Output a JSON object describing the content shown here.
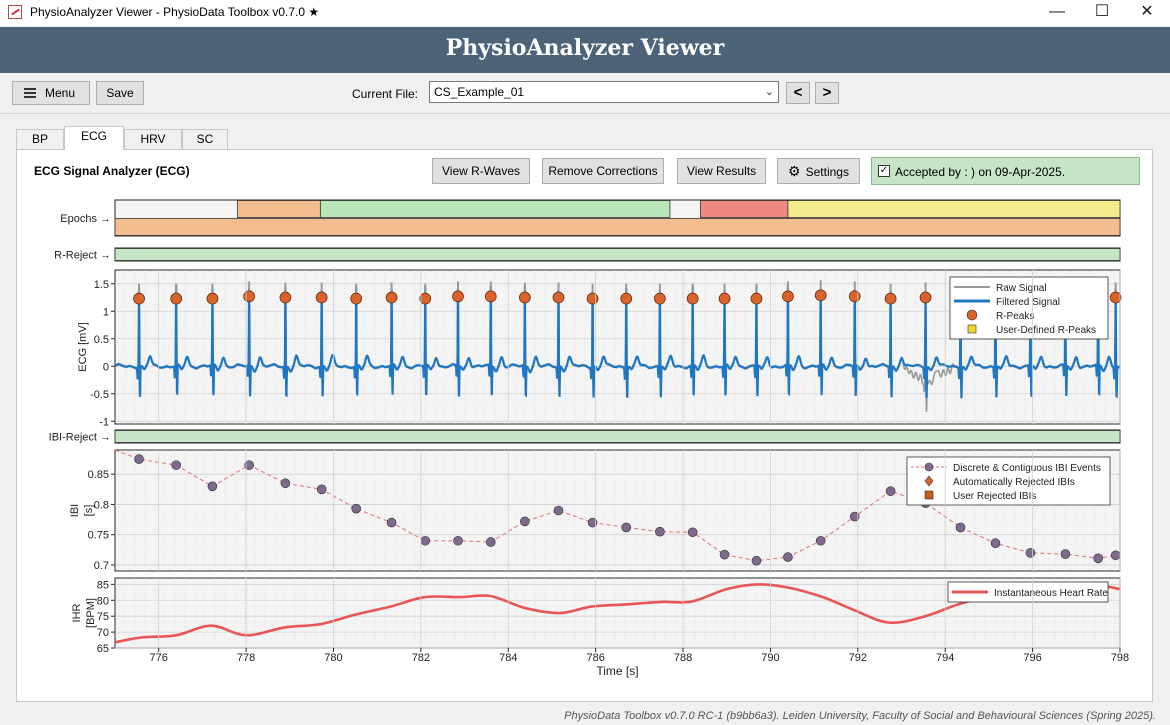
{
  "window": {
    "title": "PhysioAnalyzer Viewer - PhysioData Toolbox v0.7.0 ★"
  },
  "header": {
    "title": "PhysioAnalyzer Viewer"
  },
  "toolbar": {
    "menu_label": "Menu",
    "save_label": "Save",
    "current_file_label": "Current File:",
    "current_file": "CS_Example_01",
    "prev_label": "<",
    "next_label": ">"
  },
  "tabs": [
    {
      "label": "BP"
    },
    {
      "label": "ECG"
    },
    {
      "label": "HRV"
    },
    {
      "label": "SC"
    }
  ],
  "panel": {
    "title": "ECG Signal Analyzer (ECG)",
    "view_rwaves": "View R-Waves",
    "remove_corrections": "Remove Corrections",
    "view_results": "View Results",
    "settings": "Settings",
    "accepted": "Accepted by : ) on 09-Apr-2025."
  },
  "footer": "PhysioData Toolbox v0.7.0 RC-1 (b9bb6a3). Leiden University, Faculty of Social and Behavioural Sciences (Spring 2025).",
  "colors": {
    "raw_signal": "#999999",
    "filtered_signal": "#1f77c4",
    "r_peak": "#d9632b",
    "ibi_point": "#7e6a8e",
    "ibi_line": "#e07070",
    "ihr": "#e85555",
    "accepted_bg": "#c6e4c6",
    "reject_bar": "#c6e4c6",
    "epoch_orange": "#f2bd8f",
    "epoch_green": "#b9e6b9",
    "epoch_red": "#ee8a80",
    "epoch_yellow": "#f4ea8e"
  },
  "chart_data": [
    {
      "type": "timeline",
      "name": "epochs",
      "label": "Epochs →",
      "rows": [
        [
          {
            "start": 777.8,
            "end": 779.7,
            "color": "#f2bd8f"
          },
          {
            "start": 779.7,
            "end": 787.7,
            "color": "#b9e6b9"
          },
          {
            "start": 788.4,
            "end": 790.4,
            "color": "#ee8a80"
          },
          {
            "start": 790.4,
            "end": 798,
            "color": "#f4ea8e"
          }
        ],
        [
          {
            "start": 775,
            "end": 798,
            "color": "#f2bd8f"
          }
        ]
      ]
    },
    {
      "type": "timeline",
      "name": "r-reject",
      "label": "R-Reject →",
      "rows": [
        [
          {
            "start": 775,
            "end": 798,
            "color": "#c6e4c6"
          }
        ]
      ]
    },
    {
      "type": "line",
      "name": "ecg",
      "ylabel": "ECG [mV]",
      "xlim": [
        775,
        798
      ],
      "ylim": [
        -1.05,
        1.75
      ],
      "yticks": [
        -1,
        -0.5,
        0,
        0.5,
        1,
        1.5
      ],
      "legend": [
        "Raw Signal",
        "Filtered Signal",
        "R-Peaks",
        "User-Defined R-Peaks"
      ],
      "legend_position": "top-right",
      "r_peaks": [
        {
          "t": 775.55,
          "v": 1.23
        },
        {
          "t": 776.4,
          "v": 1.23
        },
        {
          "t": 777.23,
          "v": 1.23
        },
        {
          "t": 778.07,
          "v": 1.27
        },
        {
          "t": 778.9,
          "v": 1.25
        },
        {
          "t": 779.73,
          "v": 1.25
        },
        {
          "t": 780.52,
          "v": 1.23
        },
        {
          "t": 781.33,
          "v": 1.25
        },
        {
          "t": 782.1,
          "v": 1.23
        },
        {
          "t": 782.85,
          "v": 1.27
        },
        {
          "t": 783.6,
          "v": 1.27
        },
        {
          "t": 784.38,
          "v": 1.25
        },
        {
          "t": 785.15,
          "v": 1.25
        },
        {
          "t": 785.93,
          "v": 1.23
        },
        {
          "t": 786.7,
          "v": 1.23
        },
        {
          "t": 787.47,
          "v": 1.23
        },
        {
          "t": 788.22,
          "v": 1.23
        },
        {
          "t": 788.95,
          "v": 1.23
        },
        {
          "t": 789.68,
          "v": 1.23
        },
        {
          "t": 790.4,
          "v": 1.27
        },
        {
          "t": 791.15,
          "v": 1.29
        },
        {
          "t": 791.93,
          "v": 1.27
        },
        {
          "t": 792.75,
          "v": 1.23
        },
        {
          "t": 793.55,
          "v": 1.25
        },
        {
          "t": 794.35,
          "v": 1.25
        },
        {
          "t": 795.15,
          "v": 1.25
        },
        {
          "t": 795.95,
          "v": 1.23
        },
        {
          "t": 796.75,
          "v": 1.25
        },
        {
          "t": 797.5,
          "v": 1.23
        },
        {
          "t": 797.9,
          "v": 1.25
        }
      ],
      "raw_noise_window": [
        793.0,
        794.2
      ]
    },
    {
      "type": "timeline",
      "name": "ibi-reject",
      "label": "IBI-Reject →",
      "rows": [
        [
          {
            "start": 775,
            "end": 798,
            "color": "#c6e4c6"
          }
        ]
      ]
    },
    {
      "type": "scatter",
      "name": "ibi",
      "ylabel": "IBI [s]",
      "xlim": [
        775,
        798
      ],
      "ylim": [
        0.69,
        0.89
      ],
      "yticks": [
        0.7,
        0.75,
        0.8,
        0.85
      ],
      "legend": [
        "Discrete & Contiguous IBI Events",
        "Automatically Rejected IBIs",
        "User Rejected IBIs"
      ],
      "legend_position": "top-right",
      "x": [
        775,
        775.55,
        776.4,
        777.23,
        778.07,
        778.9,
        779.73,
        780.52,
        781.33,
        782.1,
        782.85,
        783.6,
        784.38,
        785.15,
        785.93,
        786.7,
        787.47,
        788.22,
        788.95,
        789.68,
        790.4,
        791.15,
        791.93,
        792.75,
        793.55,
        794.35,
        795.15,
        795.95,
        796.75,
        797.5,
        797.9
      ],
      "y": [
        0.89,
        0.875,
        0.865,
        0.83,
        0.865,
        0.835,
        0.825,
        0.793,
        0.77,
        0.74,
        0.74,
        0.738,
        0.772,
        0.79,
        0.77,
        0.762,
        0.755,
        0.754,
        0.717,
        0.707,
        0.713,
        0.74,
        0.78,
        0.822,
        0.802,
        0.762,
        0.736,
        0.72,
        0.718,
        0.711,
        0.716
      ]
    },
    {
      "type": "line",
      "name": "ihr",
      "ylabel": "IHR [BPM]",
      "xlabel": "Time [s]",
      "xlim": [
        775,
        798
      ],
      "ylim": [
        65,
        87
      ],
      "yticks": [
        65,
        70,
        75,
        80,
        85
      ],
      "xticks": [
        776,
        778,
        780,
        782,
        784,
        786,
        788,
        790,
        792,
        794,
        796,
        798
      ],
      "legend": [
        "Instantaneous Heart Rate"
      ],
      "legend_position": "top-right",
      "x": [
        775,
        775.6,
        776.4,
        777.2,
        778.0,
        778.9,
        779.7,
        780.5,
        781.3,
        782.1,
        782.9,
        783.6,
        784.4,
        785.2,
        785.9,
        786.7,
        787.5,
        788.2,
        789.0,
        789.7,
        790.4,
        791.2,
        791.9,
        792.7,
        793.5,
        794.3,
        795.1,
        796.0,
        796.8,
        797.5,
        798
      ],
      "y": [
        66.8,
        68.3,
        69.0,
        72.0,
        69.0,
        71.5,
        72.5,
        75.5,
        78.0,
        81.0,
        81.0,
        81.3,
        77.5,
        76.0,
        78.0,
        78.7,
        79.5,
        79.6,
        83.5,
        85.0,
        84.0,
        81.0,
        77.0,
        73.0,
        74.8,
        78.7,
        81.5,
        83.3,
        84.0,
        84.6,
        83.5
      ]
    }
  ]
}
